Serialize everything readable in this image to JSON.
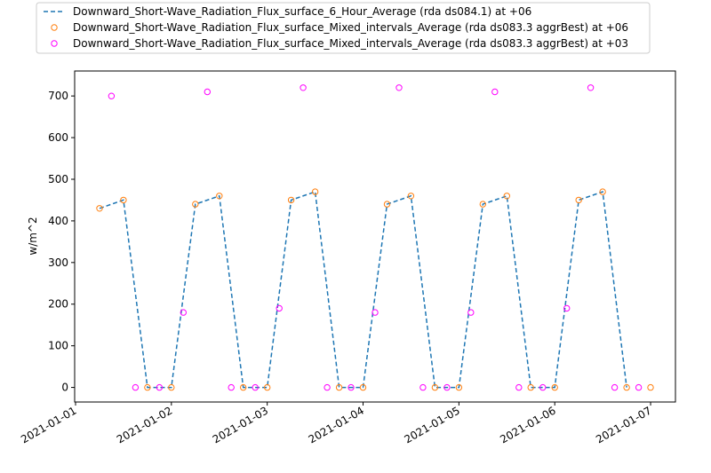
{
  "chart_data": {
    "type": "line",
    "title": "",
    "xlabel": "",
    "ylabel": "w/m^2",
    "xlim": [
      "2021-01-01 00:00",
      "2021-01-07 06:00"
    ],
    "ylim": [
      -35,
      760
    ],
    "x_ticks": [
      "2021-01-01",
      "2021-01-02",
      "2021-01-03",
      "2021-01-04",
      "2021-01-05",
      "2021-01-06",
      "2021-01-07"
    ],
    "y_ticks": [
      0,
      100,
      200,
      300,
      400,
      500,
      600,
      700
    ],
    "grid": false,
    "legend_position": "top, outside the axes",
    "series": [
      {
        "name": "Downward_Short-Wave_Radiation_Flux_surface_6_Hour_Average (rda ds084.1) at +06",
        "style": "dashed-line",
        "color": "#1f77b4",
        "points": [
          [
            "2021-01-01 06:00",
            430
          ],
          [
            "2021-01-01 12:00",
            450
          ],
          [
            "2021-01-01 18:00",
            0
          ],
          [
            "2021-01-02 00:00",
            0
          ],
          [
            "2021-01-02 06:00",
            440
          ],
          [
            "2021-01-02 12:00",
            460
          ],
          [
            "2021-01-02 18:00",
            0
          ],
          [
            "2021-01-03 00:00",
            0
          ],
          [
            "2021-01-03 06:00",
            450
          ],
          [
            "2021-01-03 12:00",
            470
          ],
          [
            "2021-01-03 18:00",
            0
          ],
          [
            "2021-01-04 00:00",
            0
          ],
          [
            "2021-01-04 06:00",
            440
          ],
          [
            "2021-01-04 12:00",
            460
          ],
          [
            "2021-01-04 18:00",
            0
          ],
          [
            "2021-01-05 00:00",
            0
          ],
          [
            "2021-01-05 06:00",
            440
          ],
          [
            "2021-01-05 12:00",
            460
          ],
          [
            "2021-01-05 18:00",
            0
          ],
          [
            "2021-01-06 00:00",
            0
          ],
          [
            "2021-01-06 06:00",
            450
          ],
          [
            "2021-01-06 12:00",
            470
          ],
          [
            "2021-01-06 18:00",
            0
          ]
        ]
      },
      {
        "name": "Downward_Short-Wave_Radiation_Flux_surface_Mixed_intervals_Average (rda ds083.3 aggrBest) at +06",
        "style": "hollow-circle",
        "color": "#ff7f0e",
        "points": [
          [
            "2021-01-01 06:00",
            430
          ],
          [
            "2021-01-01 12:00",
            450
          ],
          [
            "2021-01-01 18:00",
            0
          ],
          [
            "2021-01-02 00:00",
            0
          ],
          [
            "2021-01-02 06:00",
            440
          ],
          [
            "2021-01-02 12:00",
            460
          ],
          [
            "2021-01-02 18:00",
            0
          ],
          [
            "2021-01-03 00:00",
            0
          ],
          [
            "2021-01-03 06:00",
            450
          ],
          [
            "2021-01-03 12:00",
            470
          ],
          [
            "2021-01-03 18:00",
            0
          ],
          [
            "2021-01-04 00:00",
            0
          ],
          [
            "2021-01-04 06:00",
            440
          ],
          [
            "2021-01-04 12:00",
            460
          ],
          [
            "2021-01-04 18:00",
            0
          ],
          [
            "2021-01-05 00:00",
            0
          ],
          [
            "2021-01-05 06:00",
            440
          ],
          [
            "2021-01-05 12:00",
            460
          ],
          [
            "2021-01-05 18:00",
            0
          ],
          [
            "2021-01-06 00:00",
            0
          ],
          [
            "2021-01-06 06:00",
            450
          ],
          [
            "2021-01-06 12:00",
            470
          ],
          [
            "2021-01-06 18:00",
            0
          ],
          [
            "2021-01-07 00:00",
            0
          ]
        ]
      },
      {
        "name": "Downward_Short-Wave_Radiation_Flux_surface_Mixed_intervals_Average (rda ds083.3 aggrBest) at +03",
        "style": "hollow-circle",
        "color": "#ff00ff",
        "points": [
          [
            "2021-01-01 09:00",
            700
          ],
          [
            "2021-01-01 15:00",
            0
          ],
          [
            "2021-01-01 21:00",
            0
          ],
          [
            "2021-01-02 03:00",
            180
          ],
          [
            "2021-01-02 09:00",
            710
          ],
          [
            "2021-01-02 15:00",
            0
          ],
          [
            "2021-01-02 21:00",
            0
          ],
          [
            "2021-01-03 03:00",
            190
          ],
          [
            "2021-01-03 09:00",
            720
          ],
          [
            "2021-01-03 15:00",
            0
          ],
          [
            "2021-01-03 21:00",
            0
          ],
          [
            "2021-01-04 03:00",
            180
          ],
          [
            "2021-01-04 09:00",
            720
          ],
          [
            "2021-01-04 15:00",
            0
          ],
          [
            "2021-01-04 21:00",
            0
          ],
          [
            "2021-01-05 03:00",
            180
          ],
          [
            "2021-01-05 09:00",
            710
          ],
          [
            "2021-01-05 15:00",
            0
          ],
          [
            "2021-01-05 21:00",
            0
          ],
          [
            "2021-01-06 03:00",
            190
          ],
          [
            "2021-01-06 09:00",
            720
          ],
          [
            "2021-01-06 15:00",
            0
          ],
          [
            "2021-01-06 21:00",
            0
          ]
        ]
      }
    ]
  }
}
